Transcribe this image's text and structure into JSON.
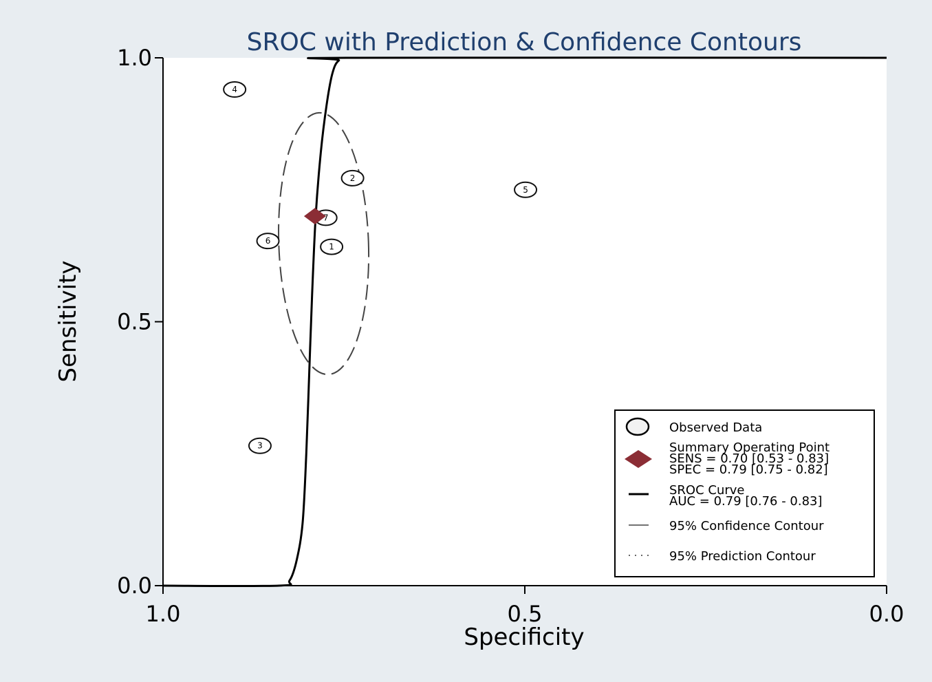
{
  "chart_data": {
    "type": "scatter",
    "title": "SROC with Prediction & Confidence Contours",
    "xlabel": "Specificity",
    "ylabel": "Sensitivity",
    "x_reversed": true,
    "xlim": [
      1.0,
      0.0
    ],
    "ylim": [
      0.0,
      1.0
    ],
    "x_ticks": [
      1.0,
      0.5,
      0.0
    ],
    "x_tick_labels": [
      "1.0",
      "0.5",
      "0.0"
    ],
    "y_ticks": [
      0.0,
      0.5,
      1.0
    ],
    "y_tick_labels": [
      "0.0",
      "0.5",
      "1.0"
    ],
    "observed": [
      {
        "label": "1",
        "spec": 0.767,
        "sens": 0.642
      },
      {
        "label": "2",
        "spec": 0.738,
        "sens": 0.772
      },
      {
        "label": "3",
        "spec": 0.866,
        "sens": 0.265
      },
      {
        "label": "4",
        "spec": 0.901,
        "sens": 0.94
      },
      {
        "label": "5",
        "spec": 0.499,
        "sens": 0.75
      },
      {
        "label": "6",
        "spec": 0.855,
        "sens": 0.653
      },
      {
        "label": "7",
        "spec": 0.775,
        "sens": 0.697
      }
    ],
    "summary_point": {
      "spec": 0.79,
      "sens": 0.7
    },
    "sroc_curve": [
      [
        1.0,
        0.0
      ],
      [
        0.84,
        0.0
      ],
      [
        0.825,
        0.01
      ],
      [
        0.815,
        0.05
      ],
      [
        0.807,
        0.12
      ],
      [
        0.802,
        0.25
      ],
      [
        0.798,
        0.4
      ],
      [
        0.794,
        0.55
      ],
      [
        0.789,
        0.7
      ],
      [
        0.782,
        0.82
      ],
      [
        0.774,
        0.91
      ],
      [
        0.766,
        0.97
      ],
      [
        0.757,
        0.995
      ],
      [
        0.74,
        1.0
      ],
      [
        0.0,
        1.0
      ]
    ],
    "confidence_contour": {
      "center_spec": 0.778,
      "center_sens": 0.648,
      "radius_spec": 0.062,
      "radius_sens": 0.248,
      "tilt_deg": -2
    },
    "legend": {
      "position": "bottom-right",
      "entries": [
        {
          "key": "observed",
          "lines": [
            "Observed Data"
          ]
        },
        {
          "key": "summary",
          "lines": [
            "Summary Operating Point",
            "SENS = 0.70 [0.53 - 0.83]",
            "SPEC = 0.79 [0.75 - 0.82]"
          ]
        },
        {
          "key": "curve",
          "lines": [
            "SROC Curve",
            "AUC = 0.79 [0.76 - 0.83]"
          ]
        },
        {
          "key": "confidence",
          "lines": [
            "95% Confidence Contour"
          ]
        },
        {
          "key": "prediction",
          "lines": [
            "95% Prediction Contour"
          ]
        }
      ]
    },
    "colors": {
      "summary": "#8b2d35",
      "curve": "#000000",
      "title": "#1f3f6e",
      "plot_bg": "#ffffff",
      "page_bg": "#e8edf1"
    }
  }
}
